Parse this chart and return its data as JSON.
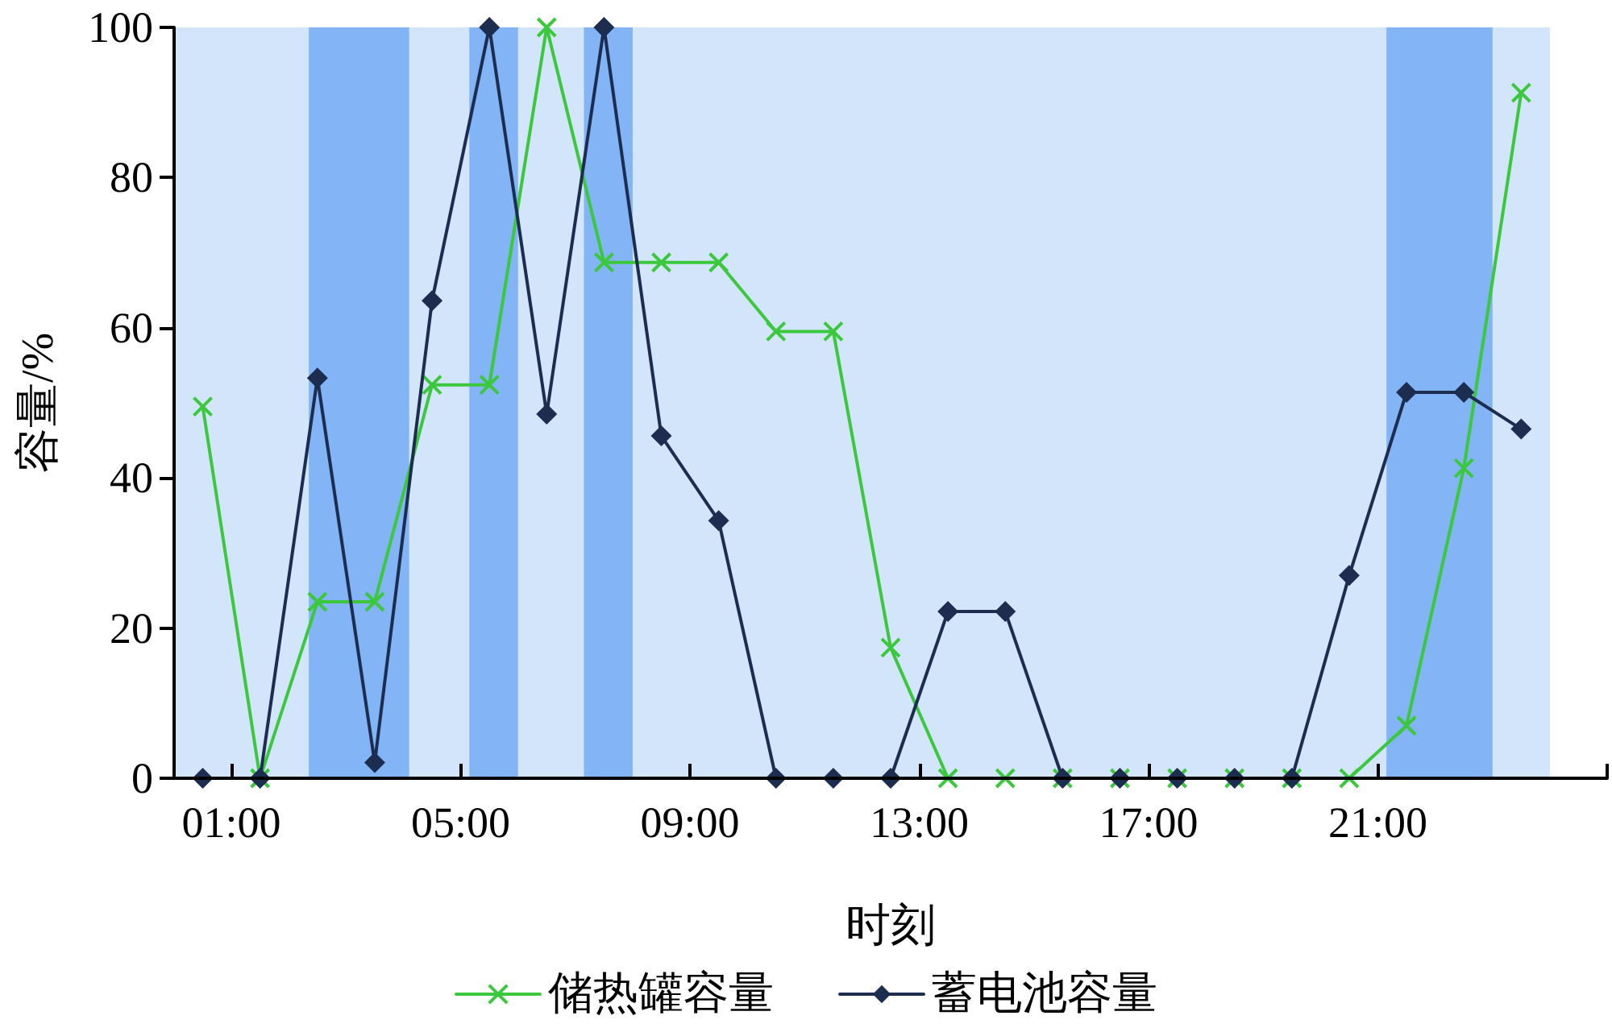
{
  "chart_data": {
    "type": "line",
    "xlabel": "时刻",
    "ylabel": "容量/%",
    "x": [
      0.5,
      1.5,
      2.5,
      3.5,
      4.5,
      5.5,
      6.5,
      7.5,
      8.5,
      9.5,
      10.5,
      11.5,
      12.5,
      13.5,
      14.5,
      15.5,
      16.5,
      17.5,
      18.5,
      19.5,
      20.5,
      21.5,
      22.5,
      23.5
    ],
    "series": [
      {
        "name": "储热罐容量",
        "color": "#3cc83c",
        "marker": "cross",
        "values": [
          49.5,
          0,
          23.5,
          23.5,
          52.4,
          52.4,
          100,
          68.7,
          68.7,
          68.7,
          59.5,
          59.5,
          17.4,
          0,
          0,
          0,
          0,
          0,
          0,
          0,
          0,
          7,
          41.3,
          91.3
        ]
      },
      {
        "name": "蓄电池容量",
        "color": "#1c2d50",
        "marker": "diamond",
        "values": [
          0,
          0,
          53.3,
          2.1,
          63.6,
          100,
          48.5,
          100,
          45.6,
          34.3,
          0,
          0,
          0,
          22.2,
          22.2,
          0,
          0,
          0,
          0,
          0,
          27,
          51.4,
          51.4,
          46.5
        ]
      }
    ],
    "xlim": [
      0,
      25
    ],
    "xticks": [
      {
        "value": 1,
        "label": "01:00"
      },
      {
        "value": 5,
        "label": "05:00"
      },
      {
        "value": 9,
        "label": "09:00"
      },
      {
        "value": 13,
        "label": "13:00"
      },
      {
        "value": 17,
        "label": "17:00"
      },
      {
        "value": 21,
        "label": "21:00"
      },
      {
        "value": 25,
        "label": null
      }
    ],
    "ylim": [
      0,
      100
    ],
    "yticks": [
      0,
      20,
      40,
      60,
      80,
      100
    ],
    "bands": [
      {
        "axis": "x",
        "from": 0,
        "to": 24,
        "color": "#d2e5fb"
      },
      {
        "axis": "x",
        "from": 2.35,
        "to": 4.1,
        "color": "#82b4f6"
      },
      {
        "axis": "x",
        "from": 5.15,
        "to": 6,
        "color": "#82b4f6"
      },
      {
        "axis": "x",
        "from": 7.15,
        "to": 8,
        "color": "#82b4f6"
      },
      {
        "axis": "x",
        "from": 21.15,
        "to": 23,
        "color": "#82b4f6"
      }
    ],
    "legend": "bottom",
    "line_style": "solid"
  }
}
